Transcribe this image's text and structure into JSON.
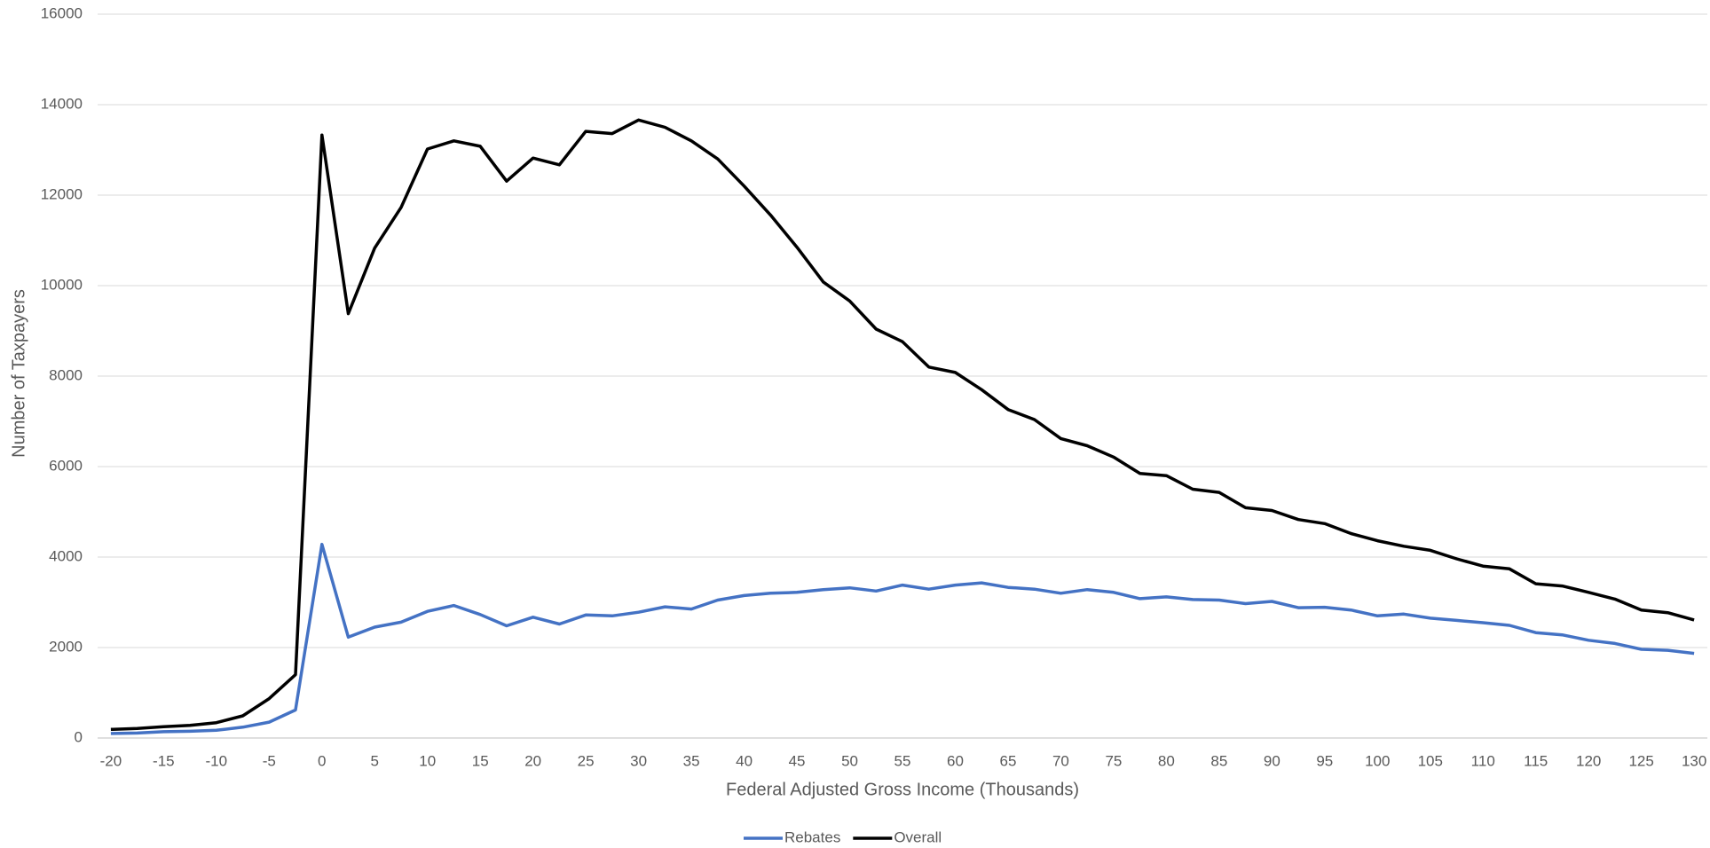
{
  "chart_data": {
    "type": "line",
    "x_label": "Federal Adjusted Gross Income (Thousands)",
    "y_label": "Number of Taxpayers",
    "categories": [
      "-20",
      null,
      "-15",
      null,
      "-10",
      null,
      "-5",
      null,
      "0",
      null,
      "5",
      null,
      "10",
      null,
      "15",
      null,
      "20",
      null,
      "25",
      null,
      "30",
      null,
      "35",
      null,
      "40",
      null,
      "45",
      null,
      "50",
      null,
      "55",
      null,
      "60",
      null,
      "65",
      null,
      "70",
      null,
      "75",
      null,
      "80",
      null,
      "85",
      null,
      "90",
      null,
      "95",
      null,
      "100",
      null,
      "105",
      null,
      "110",
      null,
      "115",
      null,
      "120",
      null,
      "125",
      null,
      "130"
    ],
    "series": [
      {
        "name": "Rebates",
        "color": "#4472c4",
        "values": [
          100,
          110,
          140,
          150,
          170,
          240,
          350,
          620,
          4280,
          2230,
          2450,
          2560,
          2800,
          2930,
          2730,
          2480,
          2670,
          2520,
          2720,
          2700,
          2780,
          2900,
          2850,
          3050,
          3150,
          3200,
          3220,
          3280,
          3320,
          3250,
          3380,
          3290,
          3380,
          3430,
          3330,
          3290,
          3200,
          3280,
          3220,
          3080,
          3120,
          3060,
          3050,
          2970,
          3020,
          2880,
          2890,
          2830,
          2700,
          2740,
          2650,
          2600,
          2550,
          2490,
          2330,
          2280,
          2160,
          2090,
          1960,
          1940,
          1870
        ]
      },
      {
        "name": "Overall",
        "color": "#000000",
        "values": [
          190,
          210,
          250,
          280,
          340,
          490,
          870,
          1400,
          13330,
          9380,
          10830,
          11730,
          13020,
          13200,
          13080,
          12310,
          12820,
          12670,
          13410,
          13360,
          13660,
          13500,
          13200,
          12800,
          12200,
          11560,
          10850,
          10080,
          9660,
          9040,
          8760,
          8200,
          8080,
          7700,
          7260,
          7040,
          6620,
          6460,
          6210,
          5850,
          5800,
          5500,
          5430,
          5090,
          5030,
          4830,
          4740,
          4520,
          4360,
          4240,
          4150,
          3960,
          3800,
          3740,
          3410,
          3360,
          3220,
          3070,
          2830,
          2770,
          2610
        ]
      }
    ],
    "ylim": [
      0,
      16000
    ],
    "yticks": [
      0,
      2000,
      4000,
      6000,
      8000,
      10000,
      12000,
      14000,
      16000
    ],
    "grid": true,
    "legend": "bottom"
  }
}
